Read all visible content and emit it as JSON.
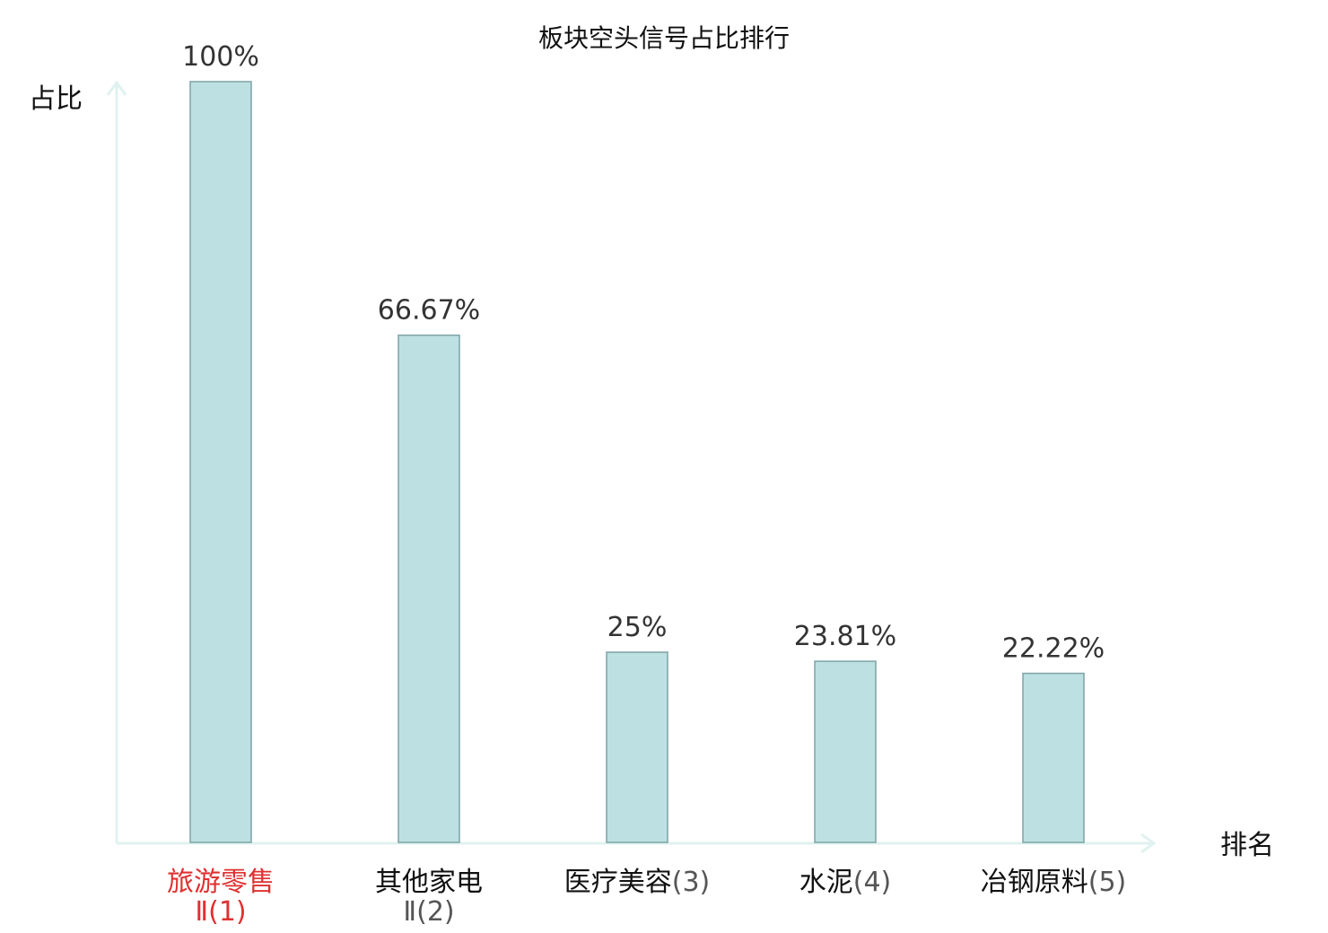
{
  "chart_data": {
    "type": "bar",
    "title": "板块空头信号占比排行",
    "ylabel": "占比",
    "xlabel": "排名",
    "ylim": [
      0,
      100
    ],
    "grid": false,
    "legend": "none",
    "categories": [
      {
        "name": "旅游零售",
        "rank_text": "Ⅱ(1)",
        "highlight": true
      },
      {
        "name": "其他家电",
        "rank_text": "Ⅱ(2)",
        "highlight": false
      },
      {
        "name": "医疗美容",
        "rank_text": "(3)",
        "highlight": false
      },
      {
        "name": "水泥",
        "rank_text": "(4)",
        "highlight": false
      },
      {
        "name": "冶钢原料",
        "rank_text": "(5)",
        "highlight": false
      }
    ],
    "values": [
      100,
      66.67,
      25,
      23.81,
      22.22
    ],
    "value_labels": [
      "100%",
      "66.67%",
      "25%",
      "23.81%",
      "22.22%"
    ],
    "colors": {
      "bar_fill": "#bde0e2",
      "bar_stroke": "#7fa3a5",
      "axis": "#e0f2f0",
      "highlight_text": "#e03030"
    }
  }
}
